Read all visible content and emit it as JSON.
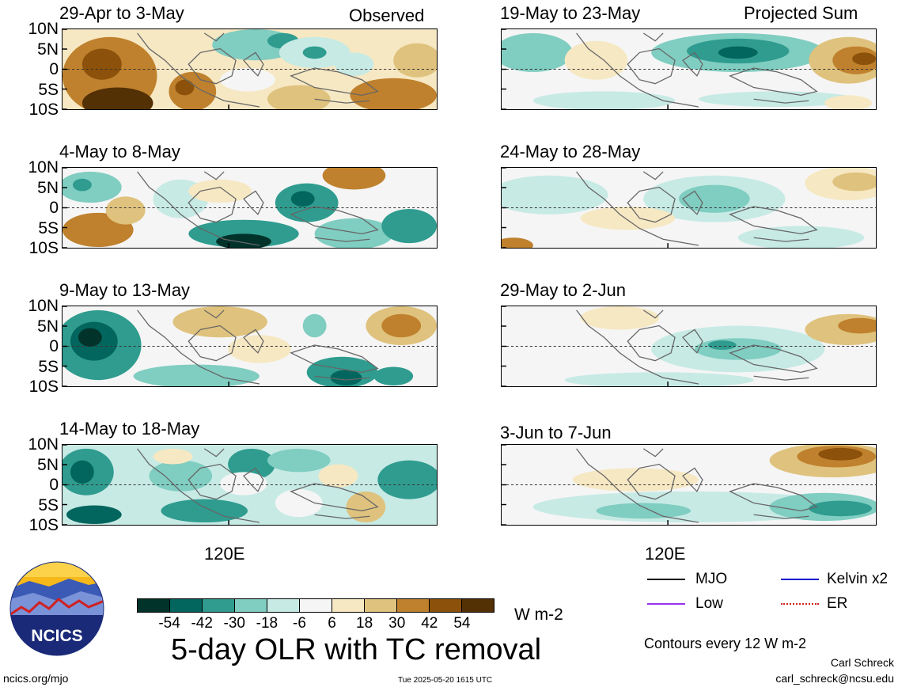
{
  "panels_left": [
    {
      "title": "29-Apr to 3-May",
      "label": "Observed"
    },
    {
      "title": "4-May to 8-May",
      "label": ""
    },
    {
      "title": "9-May to 13-May",
      "label": ""
    },
    {
      "title": "14-May to 18-May",
      "label": ""
    }
  ],
  "panels_right": [
    {
      "title": "19-May to 23-May",
      "label": "Projected Sum"
    },
    {
      "title": "24-May to 28-May",
      "label": ""
    },
    {
      "title": "29-May to 2-Jun",
      "label": ""
    },
    {
      "title": "3-Jun to 7-Jun",
      "label": ""
    }
  ],
  "lat_ticks": [
    "10N",
    "5N",
    "0",
    "5S",
    "10S"
  ],
  "lon_tick": "120E",
  "colorbar": {
    "colors": [
      "#01332a",
      "#03665e",
      "#2f9c8f",
      "#80cdc1",
      "#c7eae5",
      "#f5f5f5",
      "#f6e8c3",
      "#dfc27d",
      "#bf812d",
      "#8c510a",
      "#543005"
    ],
    "ticks": [
      "-54",
      "-42",
      "-30",
      "-18",
      "-6",
      "6",
      "18",
      "30",
      "42",
      "54"
    ],
    "units": "W m-2"
  },
  "legend": {
    "mjo": {
      "label": "MJO",
      "color": "#000000"
    },
    "kelvin": {
      "label": "Kelvin x2",
      "color": "#0000cc"
    },
    "low": {
      "label": "Low",
      "color": "#9933ee"
    },
    "er": {
      "label": "ER",
      "color": "#cc2222"
    }
  },
  "title": "5-day OLR with TC removal",
  "contours_note": "Contours every 12 W m-2",
  "author": "Carl Schreck",
  "email": "carl_schreck@ncsu.edu",
  "url": "ncics.org/mjo",
  "timestamp": "Tue 2025-05-20 1615 UTC",
  "logo_text": "NCICS",
  "chart_data": {
    "type": "heatmap",
    "title": "5-day OLR with TC removal",
    "units": "W m-2",
    "lat_range": [
      "10S",
      "10N"
    ],
    "lon_tick": "120E",
    "contour_interval": 12,
    "periods": [
      {
        "period": "29-Apr to 3-May",
        "source": "Observed"
      },
      {
        "period": "4-May to 8-May",
        "source": "Observed"
      },
      {
        "period": "9-May to 13-May",
        "source": "Observed"
      },
      {
        "period": "14-May to 18-May",
        "source": "Observed"
      },
      {
        "period": "19-May to 23-May",
        "source": "Projected Sum"
      },
      {
        "period": "24-May to 28-May",
        "source": "Projected Sum"
      },
      {
        "period": "29-May to 2-Jun",
        "source": "Projected Sum"
      },
      {
        "period": "3-Jun to 7-Jun",
        "source": "Projected Sum"
      }
    ],
    "color_levels": [
      -54,
      -42,
      -30,
      -18,
      -6,
      6,
      18,
      30,
      42,
      54
    ]
  }
}
